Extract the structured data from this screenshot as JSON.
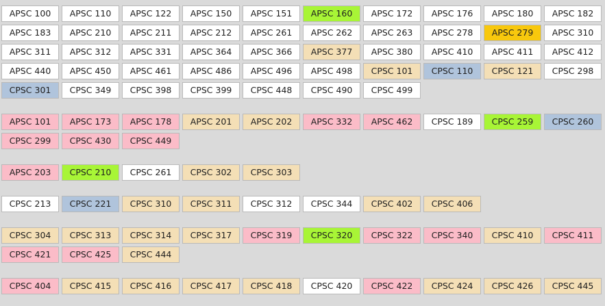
{
  "palette": {
    "white": "#ffffff",
    "green": "#a8f536",
    "gold": "#f8c80d",
    "tan": "#f4dfb6",
    "blue": "#b0c4dc",
    "pink": "#fbbcc8"
  },
  "groups": [
    {
      "rows": [
        [
          [
            "APSC 100",
            "white"
          ],
          [
            "APSC 110",
            "white"
          ],
          [
            "APSC 122",
            "white"
          ],
          [
            "APSC 150",
            "white"
          ],
          [
            "APSC 151",
            "white"
          ],
          [
            "APSC 160",
            "green"
          ],
          [
            "APSC 172",
            "white"
          ],
          [
            "APSC 176",
            "white"
          ],
          [
            "APSC 180",
            "white"
          ],
          [
            "APSC 182",
            "white"
          ]
        ],
        [
          [
            "APSC 183",
            "white"
          ],
          [
            "APSC 210",
            "white"
          ],
          [
            "APSC 211",
            "white"
          ],
          [
            "APSC 212",
            "white"
          ],
          [
            "APSC 261",
            "white"
          ],
          [
            "APSC 262",
            "white"
          ],
          [
            "APSC 263",
            "white"
          ],
          [
            "APSC 278",
            "white"
          ],
          [
            "APSC 279",
            "gold"
          ],
          [
            "APSC 310",
            "white"
          ]
        ],
        [
          [
            "APSC 311",
            "white"
          ],
          [
            "APSC 312",
            "white"
          ],
          [
            "APSC 331",
            "white"
          ],
          [
            "APSC 364",
            "white"
          ],
          [
            "APSC 366",
            "white"
          ],
          [
            "APSC 377",
            "tan"
          ],
          [
            "APSC 380",
            "white"
          ],
          [
            "APSC 410",
            "white"
          ],
          [
            "APSC 411",
            "white"
          ],
          [
            "APSC 412",
            "white"
          ]
        ],
        [
          [
            "APSC 440",
            "white"
          ],
          [
            "APSC 450",
            "white"
          ],
          [
            "APSC 461",
            "white"
          ],
          [
            "APSC 486",
            "white"
          ],
          [
            "APSC 496",
            "white"
          ],
          [
            "APSC 498",
            "white"
          ],
          [
            "CPSC 101",
            "tan"
          ],
          [
            "CPSC 110",
            "blue"
          ],
          [
            "CPSC 121",
            "tan"
          ],
          [
            "CPSC 298",
            "white"
          ]
        ],
        [
          [
            "CPSC 301",
            "blue"
          ],
          [
            "CPSC 349",
            "white"
          ],
          [
            "CPSC 398",
            "white"
          ],
          [
            "CPSC 399",
            "white"
          ],
          [
            "CPSC 448",
            "white"
          ],
          [
            "CPSC 490",
            "white"
          ],
          [
            "CPSC 499",
            "white"
          ]
        ]
      ]
    },
    {
      "rows": [
        [
          [
            "APSC 101",
            "pink"
          ],
          [
            "APSC 173",
            "pink"
          ],
          [
            "APSC 178",
            "pink"
          ],
          [
            "APSC 201",
            "tan"
          ],
          [
            "APSC 202",
            "tan"
          ],
          [
            "APSC 332",
            "pink"
          ],
          [
            "APSC 462",
            "pink"
          ],
          [
            "CPSC 189",
            "white"
          ],
          [
            "CPSC 259",
            "green"
          ],
          [
            "CPSC 260",
            "blue"
          ]
        ],
        [
          [
            "CPSC 299",
            "pink"
          ],
          [
            "CPSC 430",
            "pink"
          ],
          [
            "CPSC 449",
            "pink"
          ]
        ]
      ]
    },
    {
      "rows": [
        [
          [
            "APSC 203",
            "pink"
          ],
          [
            "CPSC 210",
            "green"
          ],
          [
            "CPSC 261",
            "white"
          ],
          [
            "CPSC 302",
            "tan"
          ],
          [
            "CPSC 303",
            "tan"
          ]
        ]
      ]
    },
    {
      "rows": [
        [
          [
            "CPSC 213",
            "white"
          ],
          [
            "CPSC 221",
            "blue"
          ],
          [
            "CPSC 310",
            "tan"
          ],
          [
            "CPSC 311",
            "tan"
          ],
          [
            "CPSC 312",
            "white"
          ],
          [
            "CPSC 344",
            "white"
          ],
          [
            "CPSC 402",
            "tan"
          ],
          [
            "CPSC 406",
            "tan"
          ]
        ]
      ]
    },
    {
      "rows": [
        [
          [
            "CPSC 304",
            "tan"
          ],
          [
            "CPSC 313",
            "tan"
          ],
          [
            "CPSC 314",
            "tan"
          ],
          [
            "CPSC 317",
            "tan"
          ],
          [
            "CPSC 319",
            "pink"
          ],
          [
            "CPSC 320",
            "green"
          ],
          [
            "CPSC 322",
            "pink"
          ],
          [
            "CPSC 340",
            "pink"
          ],
          [
            "CPSC 410",
            "tan"
          ],
          [
            "CPSC 411",
            "pink"
          ]
        ],
        [
          [
            "CPSC 421",
            "pink"
          ],
          [
            "CPSC 425",
            "pink"
          ],
          [
            "CPSC 444",
            "tan"
          ]
        ]
      ]
    },
    {
      "rows": [
        [
          [
            "CPSC 404",
            "pink"
          ],
          [
            "CPSC 415",
            "tan"
          ],
          [
            "CPSC 416",
            "tan"
          ],
          [
            "CPSC 417",
            "tan"
          ],
          [
            "CPSC 418",
            "tan"
          ],
          [
            "CPSC 420",
            "white"
          ],
          [
            "CPSC 422",
            "pink"
          ],
          [
            "CPSC 424",
            "tan"
          ],
          [
            "CPSC 426",
            "tan"
          ],
          [
            "CPSC 445",
            "tan"
          ]
        ]
      ]
    }
  ]
}
